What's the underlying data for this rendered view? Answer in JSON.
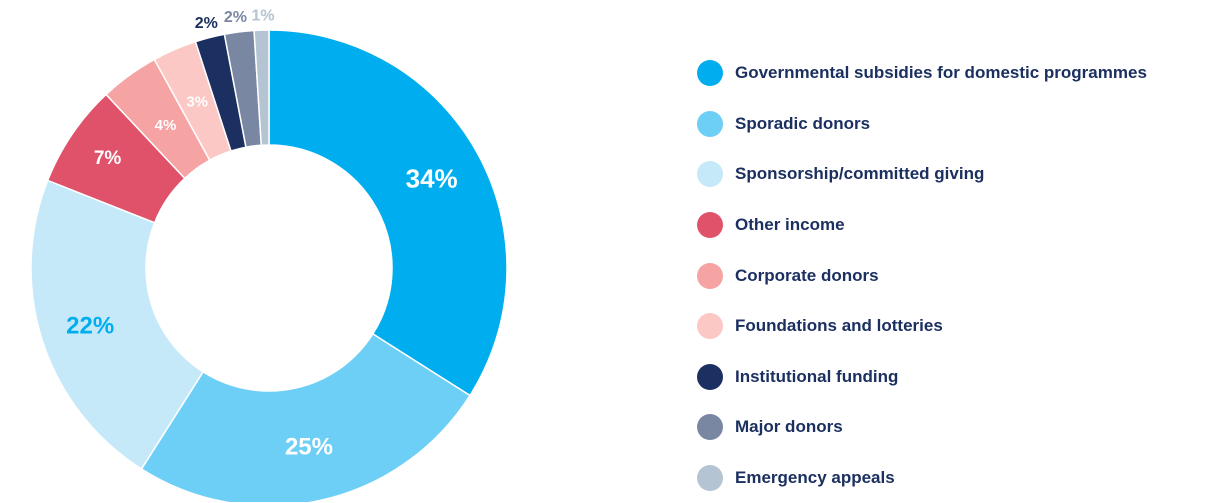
{
  "chart_data": {
    "type": "pie",
    "variant": "donut",
    "legend_position": "right",
    "slices": [
      {
        "label": "Governmental subsidies for domestic programmes",
        "value": 34,
        "value_label": "34%",
        "color": "#00aeef",
        "label_color": "#ffffff"
      },
      {
        "label": "Sporadic donors",
        "value": 25,
        "value_label": "25%",
        "color": "#6dcff6",
        "label_color": "#ffffff"
      },
      {
        "label": "Sponsorship/committed giving",
        "value": 22,
        "value_label": "22%",
        "color": "#c6e9f9",
        "label_color": "#00aeef"
      },
      {
        "label": "Other income",
        "value": 7,
        "value_label": "7%",
        "color": "#e0526a",
        "label_color": "#ffffff"
      },
      {
        "label": "Corporate donors",
        "value": 4,
        "value_label": "4%",
        "color": "#f5a3a3",
        "label_color": "#ffffff"
      },
      {
        "label": "Foundations and lotteries",
        "value": 3,
        "value_label": "3%",
        "color": "#fbc8c6",
        "label_color": "#ffffff"
      },
      {
        "label": "Institutional funding",
        "value": 2,
        "value_label": "2%",
        "color": "#1b3060",
        "label_color": "#1b3060"
      },
      {
        "label": "Major donors",
        "value": 2,
        "value_label": "2%",
        "color": "#7a87a3",
        "label_color": "#7a87a3"
      },
      {
        "label": "Emergency appeals",
        "value": 1,
        "value_label": "1%",
        "color": "#b4c4d2",
        "label_color": "#b4c4d2"
      }
    ]
  }
}
